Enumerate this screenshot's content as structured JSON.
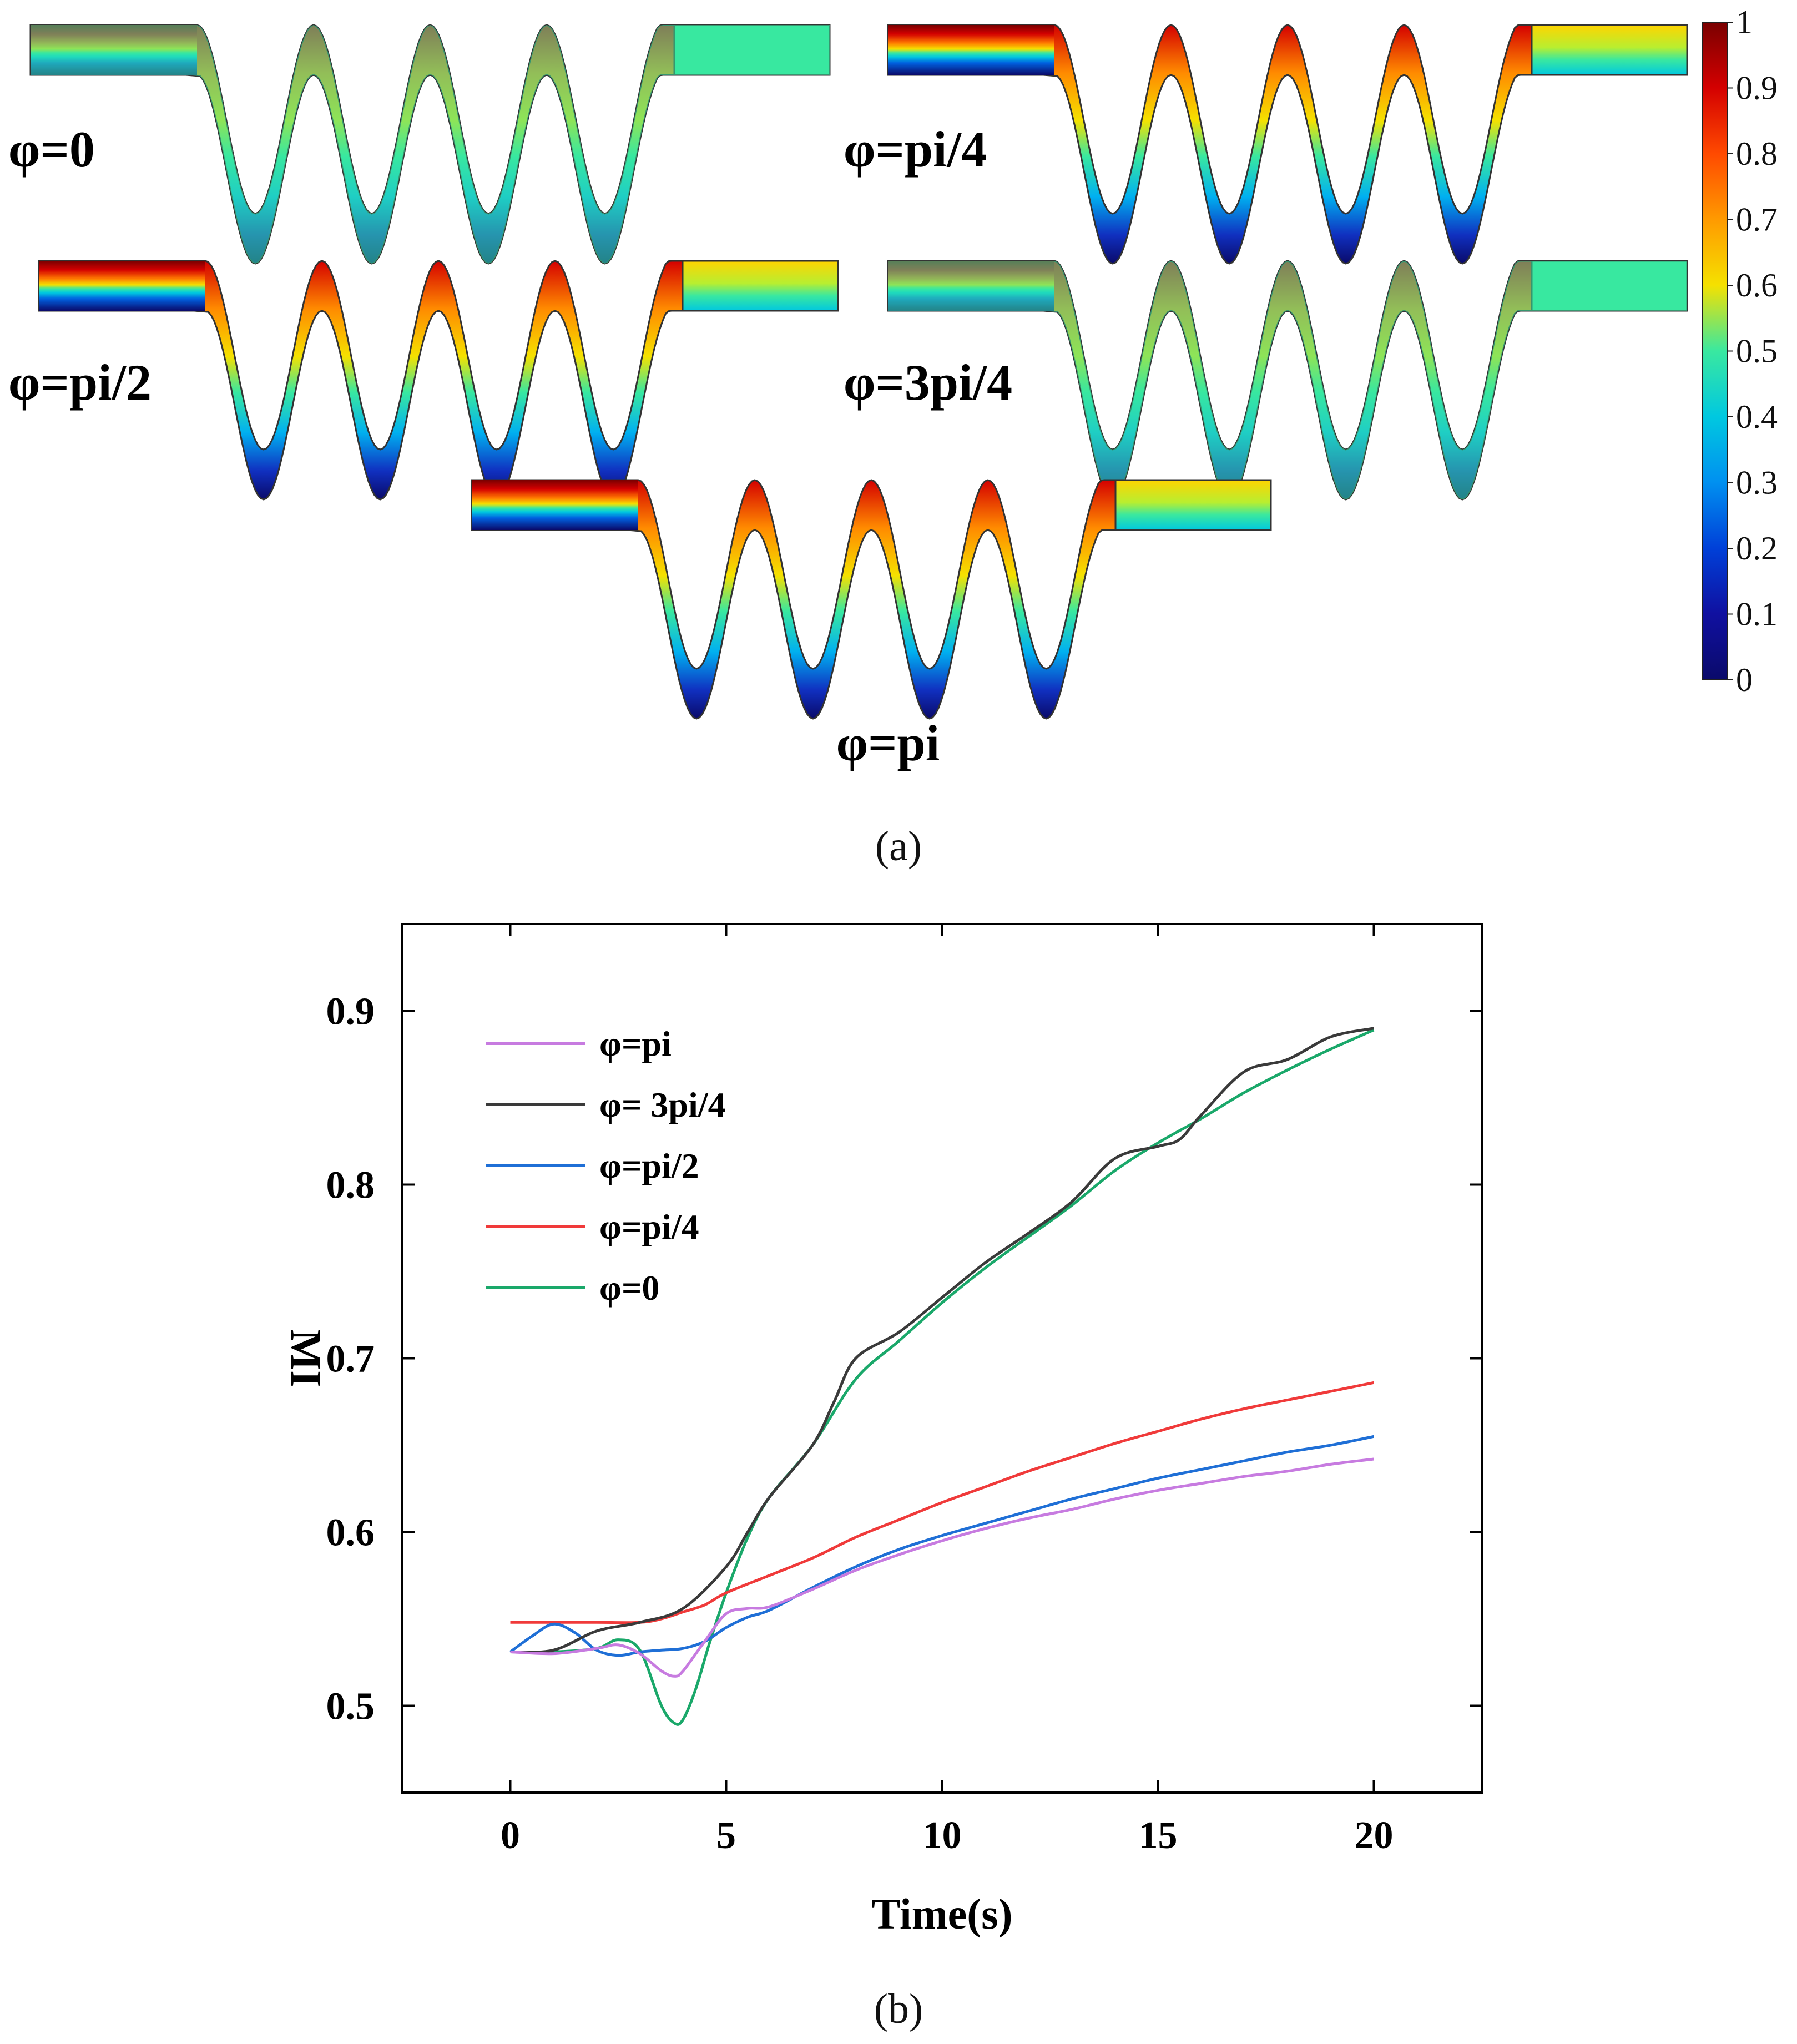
{
  "panel_a": {
    "label": "(a)",
    "colorbar": {
      "ticks": [
        "1",
        "0.9",
        "0.8",
        "0.7",
        "0.6",
        "0.5",
        "0.4",
        "0.3",
        "0.2",
        "0.1",
        "0"
      ],
      "colors": [
        "#7a0000",
        "#d40000",
        "#ff4a00",
        "#ff9a00",
        "#f5e100",
        "#39e8a0",
        "#00c8e0",
        "#0090f0",
        "#0040d8",
        "#1010a0",
        "#0a0a6a"
      ]
    },
    "snapshots": [
      {
        "label": "φ=0",
        "mix": 0.85
      },
      {
        "label": "φ=pi/4",
        "mix": 0.3
      },
      {
        "label": "φ=pi/2",
        "mix": 0.25
      },
      {
        "label": "φ=3pi/4",
        "mix": 0.85
      },
      {
        "label": "φ=pi",
        "mix": 0.2
      }
    ]
  },
  "panel_b": {
    "label": "(b)"
  },
  "chart_data": {
    "type": "line",
    "title": "",
    "xlabel": "Time(s)",
    "ylabel": "MI",
    "xlim": [
      -2.5,
      22.5
    ],
    "ylim": [
      0.45,
      0.95
    ],
    "xticks": [
      0,
      5,
      10,
      15,
      20
    ],
    "yticks": [
      0.5,
      0.6,
      0.7,
      0.8,
      0.9
    ],
    "xtick_labels": [
      "0",
      "5",
      "10",
      "15",
      "20"
    ],
    "ytick_labels": [
      "0.5",
      "0.6",
      "0.7",
      "0.8",
      "0.9"
    ],
    "legend_position": "top-left",
    "series": [
      {
        "name": "φ=pi",
        "color": "#c77be0",
        "x": [
          0,
          1,
          2,
          2.5,
          3,
          3.5,
          3.8,
          4,
          4.5,
          5,
          5.5,
          6,
          7,
          8,
          9,
          10,
          11,
          12,
          13,
          14,
          15,
          16,
          17,
          18,
          19,
          20
        ],
        "y": [
          0.531,
          0.53,
          0.533,
          0.535,
          0.53,
          0.52,
          0.517,
          0.52,
          0.537,
          0.553,
          0.556,
          0.557,
          0.567,
          0.578,
          0.587,
          0.595,
          0.602,
          0.608,
          0.613,
          0.619,
          0.624,
          0.628,
          0.632,
          0.635,
          0.639,
          0.642
        ]
      },
      {
        "name": "φ= 3pi/4",
        "color": "#3a3a3a",
        "x": [
          0,
          1,
          2,
          3,
          4,
          5,
          5.5,
          6,
          7,
          7.5,
          8,
          9,
          10,
          11,
          12,
          13,
          14,
          15,
          15.5,
          16,
          17,
          18,
          19,
          20
        ],
        "y": [
          0.531,
          0.532,
          0.543,
          0.548,
          0.556,
          0.58,
          0.6,
          0.62,
          0.65,
          0.675,
          0.7,
          0.715,
          0.735,
          0.755,
          0.772,
          0.79,
          0.815,
          0.822,
          0.826,
          0.84,
          0.865,
          0.872,
          0.885,
          0.89
        ]
      },
      {
        "name": "φ=pi/2",
        "color": "#1f6fd6",
        "x": [
          0,
          0.5,
          1,
          1.5,
          2,
          2.5,
          3,
          3.5,
          4,
          4.5,
          5,
          5.5,
          6,
          7,
          8,
          9,
          10,
          11,
          12,
          13,
          14,
          15,
          16,
          17,
          18,
          19,
          20
        ],
        "y": [
          0.531,
          0.54,
          0.547,
          0.542,
          0.532,
          0.529,
          0.531,
          0.532,
          0.533,
          0.537,
          0.545,
          0.551,
          0.555,
          0.568,
          0.58,
          0.59,
          0.598,
          0.605,
          0.612,
          0.619,
          0.625,
          0.631,
          0.636,
          0.641,
          0.646,
          0.65,
          0.655
        ]
      },
      {
        "name": "φ=pi/4",
        "color": "#f03a3a",
        "x": [
          0,
          1,
          2,
          3,
          3.5,
          4,
          4.5,
          5,
          6,
          7,
          8,
          9,
          10,
          11,
          12,
          13,
          14,
          15,
          16,
          17,
          18,
          19,
          20
        ],
        "y": [
          0.548,
          0.548,
          0.548,
          0.548,
          0.55,
          0.554,
          0.558,
          0.565,
          0.575,
          0.585,
          0.597,
          0.607,
          0.617,
          0.626,
          0.635,
          0.643,
          0.651,
          0.658,
          0.665,
          0.671,
          0.676,
          0.681,
          0.686
        ]
      },
      {
        "name": "φ=0",
        "color": "#1aa86a",
        "x": [
          0,
          1,
          2,
          2.5,
          3,
          3.5,
          3.8,
          4,
          4.3,
          4.6,
          5,
          5.5,
          6,
          7,
          8,
          9,
          10,
          11,
          12,
          13,
          14,
          15,
          16,
          17,
          18,
          19,
          20
        ],
        "y": [
          0.531,
          0.531,
          0.533,
          0.538,
          0.532,
          0.5,
          0.49,
          0.492,
          0.51,
          0.535,
          0.565,
          0.597,
          0.62,
          0.65,
          0.688,
          0.71,
          0.732,
          0.752,
          0.77,
          0.788,
          0.808,
          0.824,
          0.838,
          0.853,
          0.866,
          0.878,
          0.889
        ]
      }
    ]
  }
}
